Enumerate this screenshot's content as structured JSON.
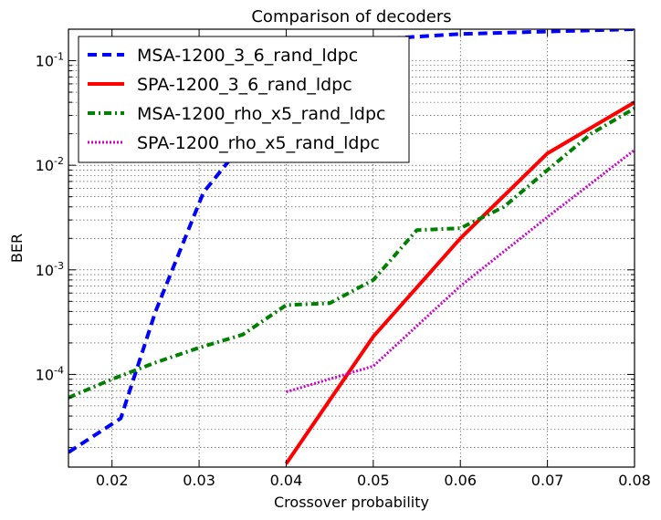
{
  "chart_data": {
    "type": "line",
    "title": "Comparison of decoders",
    "xlabel": "Crossover probability",
    "ylabel": "BER",
    "xlim": [
      0.015,
      0.08
    ],
    "ylim": [
      1.3e-05,
      0.2
    ],
    "yscale": "log",
    "grid": true,
    "legend_position": "top-left",
    "x_ticks": [
      {
        "value": 0.02,
        "label": "0.02"
      },
      {
        "value": 0.03,
        "label": "0.03"
      },
      {
        "value": 0.04,
        "label": "0.04"
      },
      {
        "value": 0.05,
        "label": "0.05"
      },
      {
        "value": 0.06,
        "label": "0.06"
      },
      {
        "value": 0.07,
        "label": "0.07"
      },
      {
        "value": 0.08,
        "label": "0.08"
      }
    ],
    "y_ticks": [
      {
        "value": 0.0001,
        "base": "10",
        "exp": "-4"
      },
      {
        "value": 0.001,
        "base": "10",
        "exp": "-3"
      },
      {
        "value": 0.01,
        "base": "10",
        "exp": "-2"
      },
      {
        "value": 0.1,
        "base": "10",
        "exp": "-1"
      }
    ],
    "series": [
      {
        "name": "MSA-1200_3_6_rand_ldpc",
        "color": "#0000ff",
        "style": "dashed",
        "x": [
          0.015,
          0.021,
          0.025,
          0.0305,
          0.035,
          0.04,
          0.05,
          0.06,
          0.07,
          0.08
        ],
        "y": [
          1.8e-05,
          3.8e-05,
          0.0004,
          0.0055,
          0.016,
          0.06,
          0.16,
          0.18,
          0.19,
          0.2
        ]
      },
      {
        "name": "SPA-1200_3_6_rand_ldpc",
        "color": "#ff0000",
        "style": "solid",
        "x": [
          0.04,
          0.05,
          0.06,
          0.07,
          0.08
        ],
        "y": [
          1.4e-05,
          0.00023,
          0.002,
          0.013,
          0.04
        ]
      },
      {
        "name": "MSA-1200_rho_x5_rand_ldpc",
        "color": "#008000",
        "style": "dashdot",
        "x": [
          0.015,
          0.02,
          0.025,
          0.03,
          0.035,
          0.04,
          0.045,
          0.05,
          0.055,
          0.06,
          0.065,
          0.07,
          0.075,
          0.08
        ],
        "y": [
          6e-05,
          9e-05,
          0.00013,
          0.00018,
          0.00024,
          0.00046,
          0.00048,
          0.0008,
          0.0024,
          0.0025,
          0.004,
          0.009,
          0.02,
          0.035
        ]
      },
      {
        "name": "SPA-1200_rho_x5_rand_ldpc",
        "color": "#cc00cc",
        "style": "dotted",
        "x": [
          0.04,
          0.05,
          0.06,
          0.07,
          0.08
        ],
        "y": [
          6.8e-05,
          0.00012,
          0.0007,
          0.0032,
          0.014
        ]
      }
    ]
  }
}
